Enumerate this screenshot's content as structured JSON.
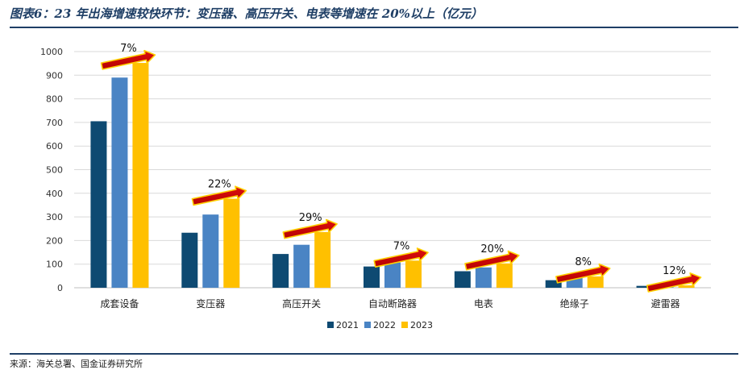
{
  "title": "图表6：23 年出海增速较快环节：变压器、高压开关、电表等增速在 20%以上（亿元）",
  "source": "来源：海关总署、国金证券研究所",
  "colors": {
    "2021": "#0e4a72",
    "2022": "#4a84c4",
    "2023": "#ffc000",
    "arrow_fill": "#c00000",
    "arrow_outline": "#ffd000"
  },
  "chart_data": {
    "type": "bar",
    "categories": [
      "成套设备",
      "变压器",
      "高压开关",
      "自动断路器",
      "电表",
      "绝缘子",
      "避雷器"
    ],
    "series": [
      {
        "name": "2021",
        "values": [
          705,
          233,
          143,
          90,
          70,
          32,
          8
        ]
      },
      {
        "name": "2022",
        "values": [
          890,
          310,
          182,
          107,
          86,
          44,
          9
        ]
      },
      {
        "name": "2023",
        "values": [
          952,
          377,
          236,
          115,
          103,
          48,
          10
        ]
      }
    ],
    "growth_labels": [
      "7%",
      "22%",
      "29%",
      "7%",
      "20%",
      "8%",
      "12%"
    ],
    "yticks": [
      0,
      100,
      200,
      300,
      400,
      500,
      600,
      700,
      800,
      900,
      1000
    ],
    "ylim": [
      0,
      1000
    ],
    "grid": true,
    "legend_position": "bottom-center"
  }
}
